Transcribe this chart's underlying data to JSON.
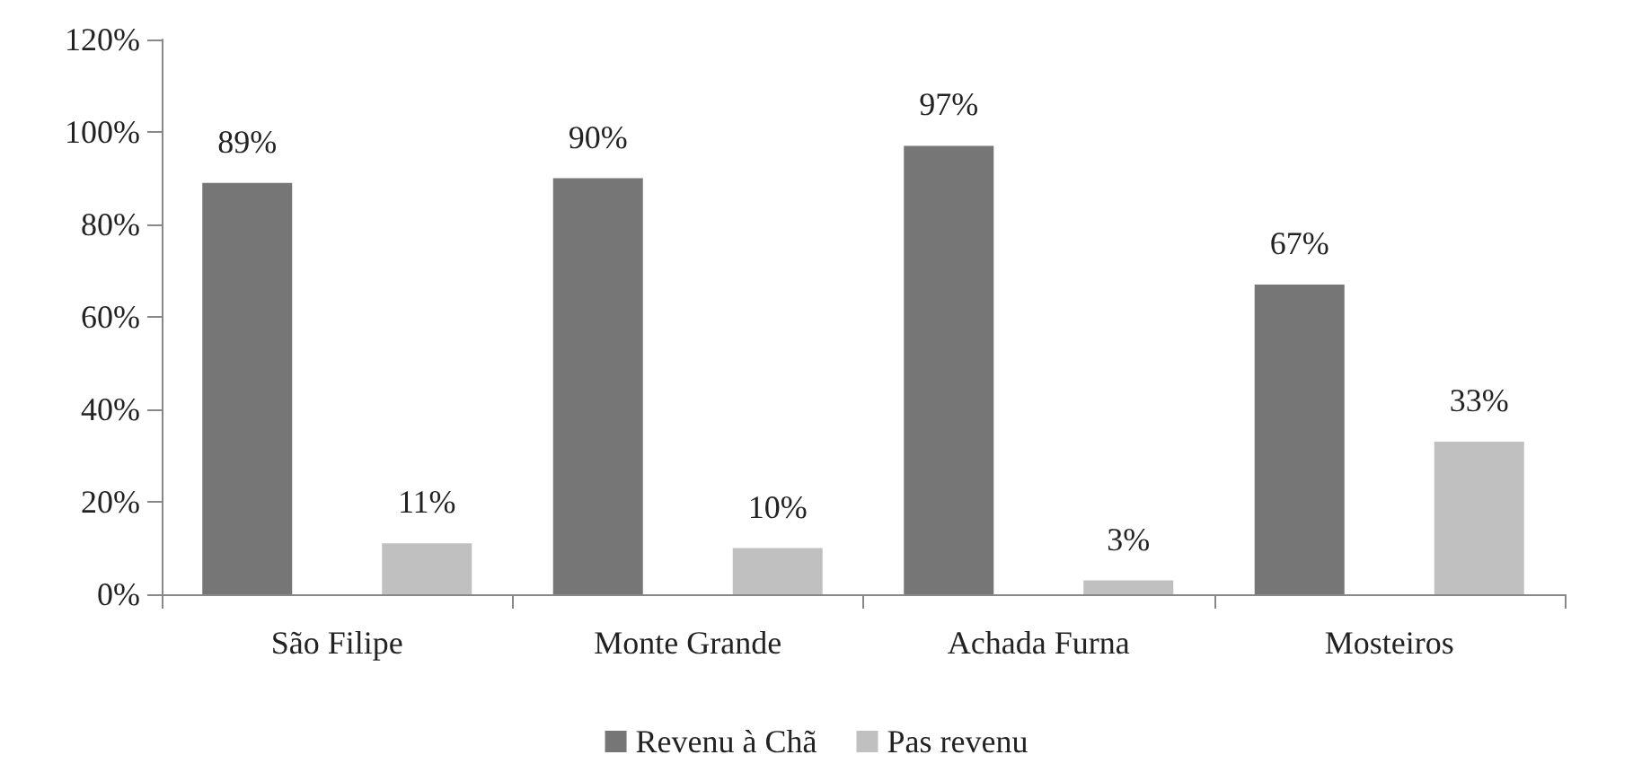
{
  "chart_data": {
    "type": "bar",
    "categories": [
      "São Filipe",
      "Monte Grande",
      "Achada Furna",
      "Mosteiros"
    ],
    "series": [
      {
        "name": "Revenu à Chã",
        "color": "#767676",
        "values": [
          89,
          90,
          97,
          67
        ],
        "value_labels": [
          "89%",
          "90%",
          "97%",
          "67%"
        ]
      },
      {
        "name": "Pas revenu",
        "color": "#c0c0c0",
        "values": [
          11,
          10,
          3,
          33
        ],
        "value_labels": [
          "11%",
          "10%",
          "3%",
          "33%"
        ]
      }
    ],
    "ylim": [
      0,
      120
    ],
    "yticks": [
      {
        "value": 0,
        "label": "0%"
      },
      {
        "value": 20,
        "label": "20%"
      },
      {
        "value": 40,
        "label": "40%"
      },
      {
        "value": 60,
        "label": "60%"
      },
      {
        "value": 80,
        "label": "80%"
      },
      {
        "value": 100,
        "label": "100%"
      },
      {
        "value": 120,
        "label": "120%"
      }
    ],
    "grid": false,
    "legend": "bottom"
  }
}
